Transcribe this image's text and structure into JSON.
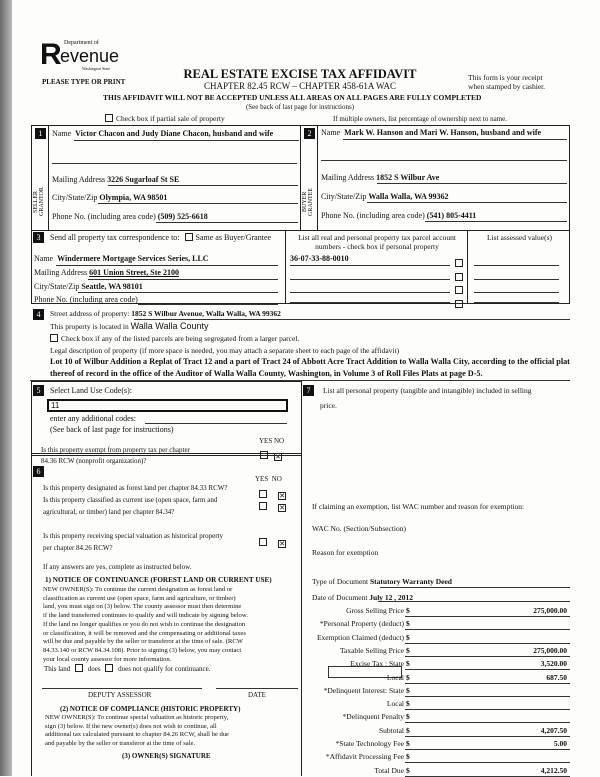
{
  "header": {
    "logo_dept": "Department of",
    "logo_word": "evenue",
    "logo_state": "Washington State",
    "please": "PLEASE TYPE OR PRINT",
    "title": "REAL ESTATE EXCISE TAX AFFIDAVIT",
    "chapter": "CHAPTER 82.45 RCW – CHAPTER 458-61A WAC",
    "warning": "THIS AFFIDAVIT WILL NOT BE ACCEPTED UNLESS ALL AREAS ON ALL PAGES ARE FULLY COMPLETED",
    "see_back": "(See back of last page for instructions)",
    "receipt1": "This form is your receipt",
    "receipt2": "when stamped by cashier.",
    "partial_sale": "Check box if partial sale of property",
    "multiple_owners": "If multiple owners, list percentage of ownership next to name."
  },
  "seller": {
    "num": "1",
    "side": "SELLER GRANTOR",
    "name_label": "Name",
    "name": "Victor Chacon and Judy Diane Chacon, husband and wife",
    "mail_label": "Mailing Address",
    "mail": "3226 Sugarloaf St  SE",
    "city_label": "City/State/Zip",
    "city": "Olympia, WA  98501",
    "phone_label": "Phone No. (including area code)",
    "phone": "(509) 525-6618"
  },
  "buyer": {
    "num": "2",
    "side": "BUYER GRANTEE",
    "name_label": "Name",
    "name": "Mark W. Hanson and Mari W. Hanson, husband and wife",
    "mail_label": "Mailing Address",
    "mail": "1852 S Wilbur Ave",
    "city_label": "City/State/Zip",
    "city": "Walla Walla, WA  99362",
    "phone_label": "Phone No. (including area code)",
    "phone": "(541) 805-4411"
  },
  "sec3": {
    "num": "3",
    "send_label": "Send all property tax correspondence to:",
    "same_label": "Same as Buyer/Grantee",
    "name_label": "Name",
    "name": "Windermere Mortgage Services Series, LLC",
    "mail_label": "Mailing Address",
    "mail": "601 Union Street, Ste 2100",
    "city_label": "City/State/Zip",
    "city": "Seattle, WA 98101",
    "phone_label": "Phone No. (including area code)",
    "parcel_header1": "List all real and personal property tax parcel account",
    "parcel_header2": "numbers - check box if personal property",
    "parcel": "36-07-33-88-0010",
    "assessed_header": "List assessed value(s)"
  },
  "sec4": {
    "num": "4",
    "street_label": "Street address of property:",
    "street": "1852 S Wilbur Avenue, Walla Walla, WA  99362",
    "located_label": "This property is located in",
    "county": "Walla Walla County",
    "segregated": "Check box if any of the listed parcels are being segregated from a larger parcel.",
    "legal_label": "Legal description of property (if more space is needed, you may attach a separate sheet to each page of the affidavit)",
    "legal": "Lot 10 of Wilbur Addition a Replat of Tract 12 and a part of Tract 24 of Abbott Acre Tract Addition to Walla Walla City, according to the official plat thereof of record in the office of the Auditor of Walla Walla County, Washington, in Volume 3 of Roll Files Plats at page D-5."
  },
  "sec5": {
    "num": "5",
    "label": "Select Land Use Code(s):",
    "code": "11",
    "additional": "enter any additional codes:",
    "see_back": "(See back of last page for instructions)",
    "yes": "YES",
    "no": "NO",
    "exempt_q1": "Is this property exempt from property tax per chapter",
    "exempt_q2": "84.36 RCW (nonprofit organization)?",
    "exempt_answer": "NO"
  },
  "sec6": {
    "num": "6",
    "yes": "YES",
    "no": "NO",
    "q1": "Is this property designated as forest land per chapter 84.33 RCW?",
    "q2a": "Is this property classified as current use (open space, farm and",
    "q2b": "agricultural, or timber) land per chapter 84.34?",
    "q3a": "Is this property receiving special valuation as historical property",
    "q3b": "per chapter 84.26 RCW?",
    "answers": [
      "NO",
      "NO",
      "NO"
    ],
    "if_yes": "If any answers are yes, complete as instructed below.",
    "notice1_title": "1) NOTICE OF CONTINUANCE (FOREST LAND OR CURRENT USE)",
    "notice1_lines": [
      "NEW OWNER(S): To continue the current designation as forest land or",
      "classification as current use (open space, farm and agriculture, or timber)",
      "land, you must sign on (3) below. The county assessor must then determine",
      "if the land transferred continues to qualify and will indicate by signing below.",
      "If the land no longer qualifies or you do not wish to continue the designation",
      "or classification, it will be removed and the compensating or additional taxes",
      "will be due and payable by the seller or transferor at the time of sale. (RCW",
      "84.33.140 or RCW 84.34.108). Prior to signing (3) below, you may contact",
      "your local county assessor for more information."
    ],
    "this_land": "This land",
    "does": "does",
    "does_not": "does not  qualify for continuance.",
    "deputy": "DEPUTY ASSESSOR",
    "date": "DATE",
    "notice2_title": "(2) NOTICE OF COMPLIANCE (HISTORIC PROPERTY)",
    "notice2_lines": [
      "NEW OWNER(S): To continue special valuation as historic property,",
      "sign (3) below. If the new owner(s) does not wish to continue, all",
      "additional tax calculated pursuant to chapter 84.26 RCW, shall be due",
      "and payable by the seller or transferor at the time of sale."
    ],
    "signature": "(3) OWNER(S) SIGNATURE"
  },
  "sec7": {
    "num": "7",
    "label1": "List all personal property (tangible and intangible) included in selling",
    "label2": "price.",
    "exemption": "If claiming an exemption, list WAC number and reason for exemption:",
    "wac": "WAC No. (Section/Subsection)",
    "reason": "Reason for exemption",
    "doc_type_label": "Type of Document",
    "doc_type": "Statutory Warranty Deed",
    "doc_date_label": "Date of Document",
    "doc_date": "July 12 , 2012",
    "rows": [
      {
        "label": "Gross Selling Price",
        "value": "275,000.00"
      },
      {
        "label": "*Personal Property (deduct)",
        "value": ""
      },
      {
        "label": "Exemption Claimed (deduct)",
        "value": ""
      },
      {
        "label": "Taxable Selling Price",
        "value": "275,000.00"
      },
      {
        "label": "Excise Tax : State",
        "value": "3,520.00"
      },
      {
        "label": "Local",
        "value": "687.50"
      },
      {
        "label": "*Delinquent Interest:  State",
        "value": ""
      },
      {
        "label": "Local",
        "value": ""
      },
      {
        "label": "*Delinquent Penalty",
        "value": ""
      },
      {
        "label": "Subtotal",
        "value": "4,207.50"
      },
      {
        "label": "*State Technology Fee",
        "value": "5.00"
      },
      {
        "label": "*Affidavit Processing Fee",
        "value": ""
      },
      {
        "label": "Total Due",
        "value": "4,212.50"
      }
    ],
    "dollar": "$"
  }
}
